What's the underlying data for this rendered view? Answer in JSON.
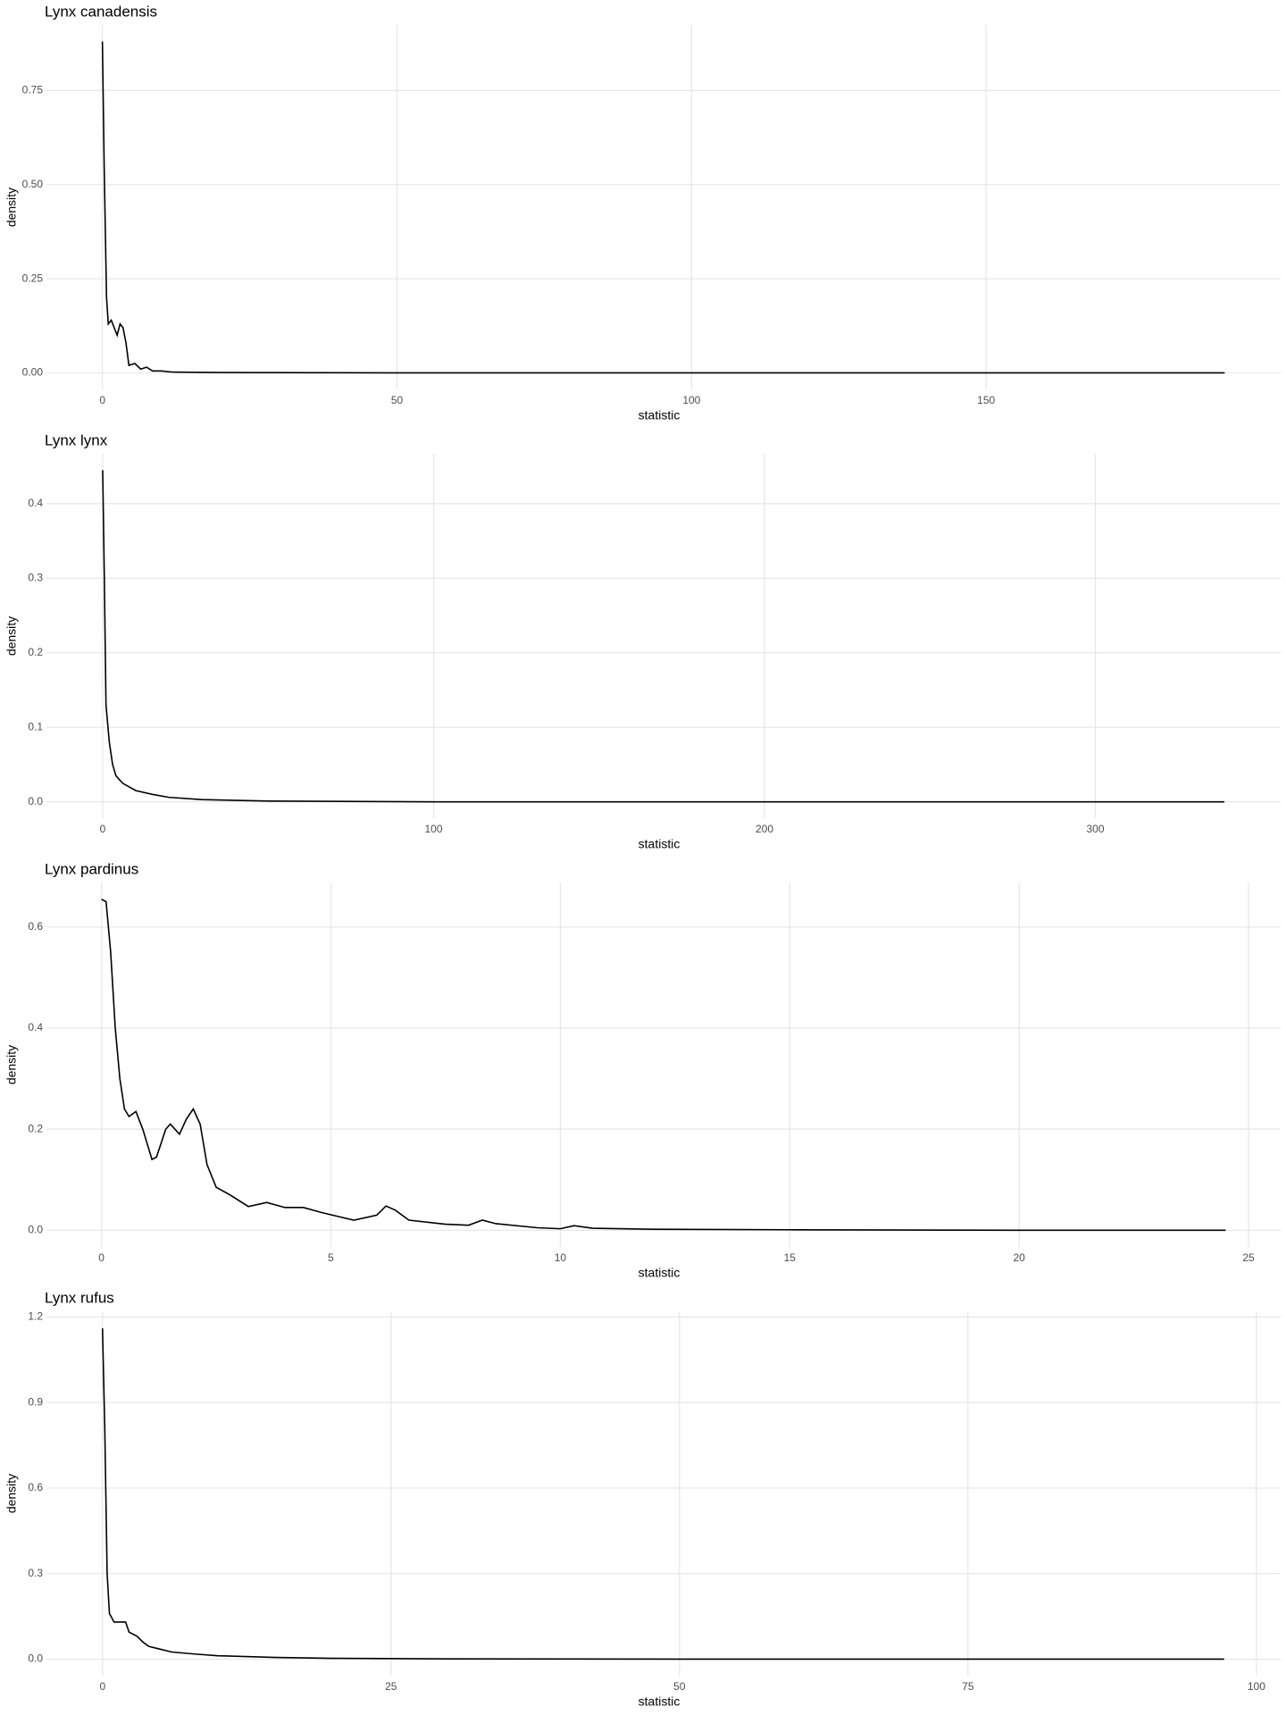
{
  "chart_data": [
    {
      "type": "line",
      "title": "Lynx canadensis",
      "xlabel": "statistic",
      "ylabel": "density",
      "color": "#000000",
      "grid": true,
      "x": [
        0,
        0.3,
        0.7,
        1,
        1.5,
        2,
        2.5,
        3,
        3.5,
        4,
        4.5,
        5.5,
        6.5,
        7.5,
        8.5,
        10,
        12,
        20,
        50,
        100,
        150,
        190.5
      ],
      "values": [
        0.88,
        0.55,
        0.2,
        0.13,
        0.14,
        0.12,
        0.1,
        0.13,
        0.12,
        0.08,
        0.02,
        0.025,
        0.01,
        0.015,
        0.005,
        0.005,
        0.002,
        0.001,
        0,
        0,
        0,
        0
      ],
      "xlim": [
        -9.5,
        200
      ],
      "ylim": [
        -0.044,
        0.924
      ],
      "xticks": [
        0,
        50,
        100,
        150
      ],
      "yticks": [
        {
          "value": 0,
          "label": "0.00"
        },
        0.25,
        {
          "value": 0.5,
          "label": "0.50"
        },
        0.75
      ]
    },
    {
      "type": "line",
      "title": "Lynx lynx",
      "xlabel": "statistic",
      "ylabel": "density",
      "color": "#000000",
      "grid": true,
      "x": [
        0,
        0.5,
        1,
        2,
        3,
        4,
        6,
        10,
        15,
        20,
        30,
        50,
        100,
        200,
        339
      ],
      "values": [
        0.445,
        0.3,
        0.13,
        0.08,
        0.05,
        0.035,
        0.025,
        0.015,
        0.01,
        0.006,
        0.003,
        0.001,
        0,
        0,
        0
      ],
      "xlim": [
        -17,
        356
      ],
      "ylim": [
        -0.022,
        0.467
      ],
      "xticks": [
        0,
        100,
        200,
        300
      ],
      "yticks": [
        {
          "value": 0,
          "label": "0.0"
        },
        0.1,
        0.2,
        0.3,
        0.4
      ]
    },
    {
      "type": "line",
      "title": "Lynx pardinus",
      "xlabel": "statistic",
      "ylabel": "density",
      "color": "#000000",
      "grid": true,
      "x": [
        0,
        0.1,
        0.2,
        0.3,
        0.4,
        0.5,
        0.6,
        0.75,
        0.9,
        1.1,
        1.2,
        1.4,
        1.5,
        1.7,
        1.85,
        2,
        2.15,
        2.3,
        2.5,
        2.8,
        3.2,
        3.6,
        4,
        4.4,
        4.8,
        5.5,
        6,
        6.2,
        6.4,
        6.7,
        7.5,
        8,
        8.3,
        8.6,
        9.5,
        10,
        10.3,
        10.7,
        12,
        15,
        20,
        24.5
      ],
      "values": [
        0.655,
        0.65,
        0.55,
        0.4,
        0.3,
        0.24,
        0.225,
        0.235,
        0.2,
        0.14,
        0.145,
        0.2,
        0.21,
        0.19,
        0.22,
        0.24,
        0.21,
        0.13,
        0.085,
        0.07,
        0.047,
        0.055,
        0.045,
        0.045,
        0.035,
        0.02,
        0.03,
        0.048,
        0.04,
        0.02,
        0.012,
        0.01,
        0.02,
        0.013,
        0.005,
        0.003,
        0.009,
        0.004,
        0.002,
        0.001,
        0,
        0
      ],
      "xlim": [
        -1.2,
        25.7
      ],
      "ylim": [
        -0.033,
        0.688
      ],
      "xticks": [
        0,
        5,
        10,
        15,
        20,
        25
      ],
      "yticks": [
        {
          "value": 0,
          "label": "0.0"
        },
        0.2,
        0.4,
        0.6
      ]
    },
    {
      "type": "line",
      "title": "Lynx rufus",
      "xlabel": "statistic",
      "ylabel": "density",
      "color": "#000000",
      "grid": true,
      "x": [
        0,
        0.2,
        0.4,
        0.6,
        1,
        1.5,
        2,
        2.3,
        3,
        3.5,
        4,
        5,
        6,
        8,
        10,
        15,
        20,
        30,
        50,
        97.2
      ],
      "values": [
        1.16,
        0.8,
        0.3,
        0.16,
        0.13,
        0.13,
        0.13,
        0.095,
        0.08,
        0.06,
        0.045,
        0.035,
        0.025,
        0.018,
        0.012,
        0.006,
        0.003,
        0.001,
        0,
        0
      ],
      "xlim": [
        -4.86,
        102.1
      ],
      "ylim": [
        -0.058,
        1.22
      ],
      "xticks": [
        0,
        25,
        50,
        75,
        100
      ],
      "yticks": [
        {
          "value": 0,
          "label": "0.0"
        },
        0.3,
        0.6,
        0.9,
        1.2
      ]
    }
  ]
}
